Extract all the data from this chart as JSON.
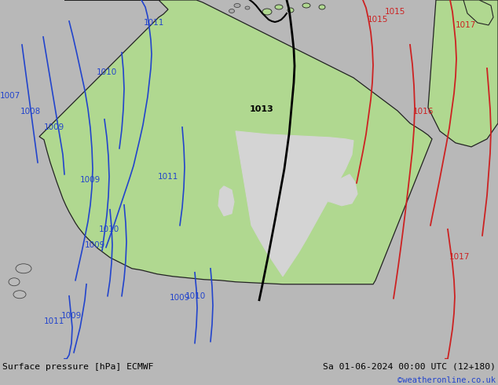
{
  "title_left": "Surface pressure [hPa] ECMWF",
  "title_right": "Sa 01-06-2024 00:00 UTC (12+180)",
  "credit": "©weatheronline.co.uk",
  "bg_color": "#d4d4d4",
  "land_green_color": "#b0d890",
  "land_gray_color": "#c8c8c8",
  "sea_color": "#d4d4d4",
  "border_color": "#222222",
  "blue_line_color": "#2244cc",
  "red_line_color": "#cc2222",
  "black_line_color": "#000000",
  "label_blue": "#2244cc",
  "label_red": "#cc2222",
  "label_black": "#000000",
  "bottom_bar_color": "#b8b8b8",
  "figsize": [
    6.34,
    4.9
  ],
  "dpi": 100,
  "credit_color": "#2244cc",
  "map_bg": "#d4d4d4"
}
